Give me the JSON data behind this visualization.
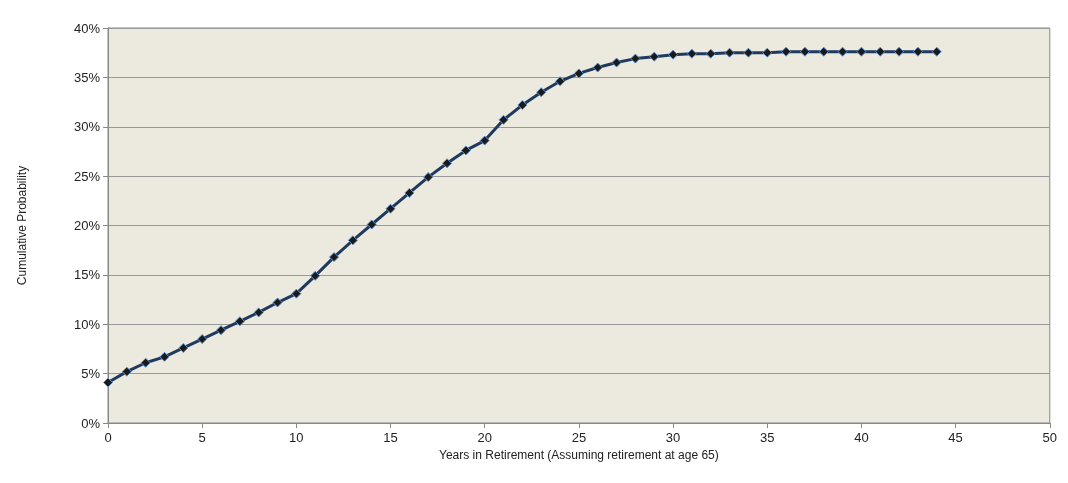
{
  "chart_data": {
    "type": "line",
    "xlabel": "Years in Retirement (Assuming retirement at age 65)",
    "ylabel": "Cumulative Probability",
    "x": [
      0,
      1,
      2,
      3,
      4,
      5,
      6,
      7,
      8,
      9,
      10,
      11,
      12,
      13,
      14,
      15,
      16,
      17,
      18,
      19,
      20,
      21,
      22,
      23,
      24,
      25,
      26,
      27,
      28,
      29,
      30,
      31,
      32,
      33,
      34,
      35,
      36,
      37,
      38,
      39,
      40,
      41,
      42,
      43,
      44
    ],
    "series": [
      {
        "color": "#1f3a5f",
        "values": [
          4.1,
          5.2,
          6.1,
          6.7,
          7.6,
          8.5,
          9.4,
          10.3,
          11.2,
          12.2,
          13.1,
          14.9,
          16.8,
          18.5,
          20.1,
          21.7,
          23.3,
          24.9,
          26.3,
          27.6,
          28.6,
          30.7,
          32.2,
          33.5,
          34.6,
          35.4,
          36.0,
          36.5,
          36.9,
          37.1,
          37.3,
          37.4,
          37.4,
          37.5,
          37.5,
          37.5,
          37.6,
          37.6,
          37.6,
          37.6,
          37.6,
          37.6,
          37.6,
          37.6,
          37.6
        ]
      }
    ],
    "xlim": [
      0,
      50
    ],
    "xticks": [
      0,
      5,
      10,
      15,
      20,
      25,
      30,
      35,
      40,
      45,
      50
    ],
    "ylim": [
      0,
      40
    ],
    "yticks": [
      {
        "value": 0,
        "label": "0%"
      },
      {
        "value": 5,
        "label": "5%"
      },
      {
        "value": 10,
        "label": "10%"
      },
      {
        "value": 15,
        "label": "15%"
      },
      {
        "value": 20,
        "label": "20%"
      },
      {
        "value": 25,
        "label": "25%"
      },
      {
        "value": 30,
        "label": "30%"
      },
      {
        "value": 35,
        "label": "35%"
      },
      {
        "value": 40,
        "label": "40%"
      }
    ],
    "grid": "y",
    "marker": "diamond",
    "line_style": "solid"
  }
}
